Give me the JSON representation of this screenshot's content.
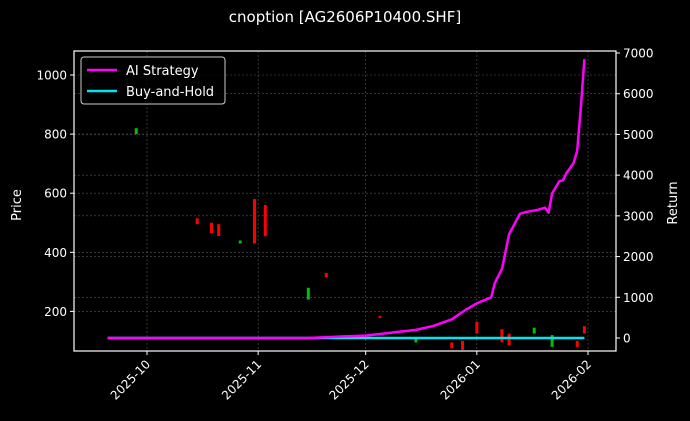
{
  "title": "cnoption [AG2606P10400.SHF]",
  "colors": {
    "background": "#000000",
    "ai_strategy": "#ff00ff",
    "buy_and_hold": "#00e5ee",
    "candle_up": "#00c000",
    "candle_down": "#ff0000",
    "grid": "#555555",
    "axis": "#ffffff"
  },
  "legend": {
    "items": [
      {
        "label": "AI Strategy",
        "color": "#ff00ff"
      },
      {
        "label": "Buy-and-Hold",
        "color": "#00e5ee"
      }
    ]
  },
  "axes": {
    "left_label": "Price",
    "right_label": "Return",
    "left_ticks": [
      "1000",
      "800",
      "600",
      "400",
      "200"
    ],
    "right_ticks": [
      "7000",
      "6000",
      "5000",
      "4000",
      "3000",
      "2000",
      "1000",
      "0"
    ],
    "x_ticks": [
      "2025-10",
      "2025-11",
      "2025-12",
      "2026-01",
      "2026-02"
    ]
  },
  "chart_data": {
    "type": "line",
    "title": "cnoption [AG2606P10400.SHF]",
    "xlabel": "",
    "ylabel": "Price",
    "ylabel_right": "Return",
    "ylim": [
      65,
      1080
    ],
    "ylim_right": [
      -300,
      7000
    ],
    "grid": true,
    "legend_position": "upper left",
    "x_tick_labels": [
      "2025-10",
      "2025-11",
      "2025-12",
      "2026-01",
      "2026-02"
    ],
    "series": [
      {
        "name": "AI Strategy",
        "axis": "right",
        "x": [
          "2025-09-20",
          "2025-10-15",
          "2025-11-15",
          "2025-11-25",
          "2025-12-01",
          "2025-12-10",
          "2025-12-15",
          "2025-12-20",
          "2025-12-25",
          "2025-12-29",
          "2026-01-01",
          "2026-01-05",
          "2026-01-06",
          "2026-01-08",
          "2026-01-10",
          "2026-01-13",
          "2026-01-15",
          "2026-01-18",
          "2026-01-20",
          "2026-01-21",
          "2026-01-22",
          "2026-01-24",
          "2026-01-25",
          "2026-01-26",
          "2026-01-28",
          "2026-01-29",
          "2026-01-30",
          "2026-01-31"
        ],
        "values": [
          0,
          0,
          0,
          40,
          60,
          150,
          200,
          300,
          460,
          700,
          850,
          1000,
          1350,
          1700,
          2550,
          3050,
          3100,
          3150,
          3200,
          3080,
          3550,
          3850,
          3870,
          4050,
          4300,
          4600,
          5650,
          6850
        ]
      },
      {
        "name": "Buy-and-Hold",
        "axis": "right",
        "x": [
          "2025-09-20",
          "2026-01-31"
        ],
        "values": [
          0,
          0
        ]
      },
      {
        "name": "Price (candlestick)",
        "axis": "left",
        "type": "candlestick",
        "points": [
          {
            "x": "2025-09-28",
            "open": 820,
            "close": 800,
            "dir": "up"
          },
          {
            "x": "2025-10-15",
            "open": 515,
            "close": 495,
            "dir": "down"
          },
          {
            "x": "2025-10-19",
            "open": 500,
            "close": 465,
            "dir": "down"
          },
          {
            "x": "2025-10-21",
            "open": 495,
            "close": 455,
            "dir": "down"
          },
          {
            "x": "2025-10-27",
            "open": 440,
            "close": 430,
            "dir": "up"
          },
          {
            "x": "2025-10-31",
            "open": 580,
            "close": 430,
            "dir": "down"
          },
          {
            "x": "2025-11-03",
            "open": 560,
            "close": 455,
            "dir": "down"
          },
          {
            "x": "2025-11-15",
            "open": 280,
            "close": 240,
            "dir": "up"
          },
          {
            "x": "2025-11-20",
            "open": 330,
            "close": 315,
            "dir": "down"
          },
          {
            "x": "2025-12-05",
            "open": 185,
            "close": 178,
            "dir": "down"
          },
          {
            "x": "2025-12-15",
            "open": 110,
            "close": 95,
            "dir": "up"
          },
          {
            "x": "2025-12-25",
            "open": 95,
            "close": 75,
            "dir": "down"
          },
          {
            "x": "2025-12-28",
            "open": 100,
            "close": 70,
            "dir": "down"
          },
          {
            "x": "2026-01-01",
            "open": 165,
            "close": 125,
            "dir": "down"
          },
          {
            "x": "2026-01-08",
            "open": 140,
            "close": 95,
            "dir": "down"
          },
          {
            "x": "2026-01-10",
            "open": 125,
            "close": 85,
            "dir": "down"
          },
          {
            "x": "2026-01-17",
            "open": 145,
            "close": 125,
            "dir": "up"
          },
          {
            "x": "2026-01-22",
            "open": 120,
            "close": 80,
            "dir": "up"
          },
          {
            "x": "2026-01-29",
            "open": 100,
            "close": 80,
            "dir": "down"
          },
          {
            "x": "2026-01-31",
            "open": 150,
            "close": 125,
            "dir": "down"
          }
        ]
      }
    ]
  }
}
